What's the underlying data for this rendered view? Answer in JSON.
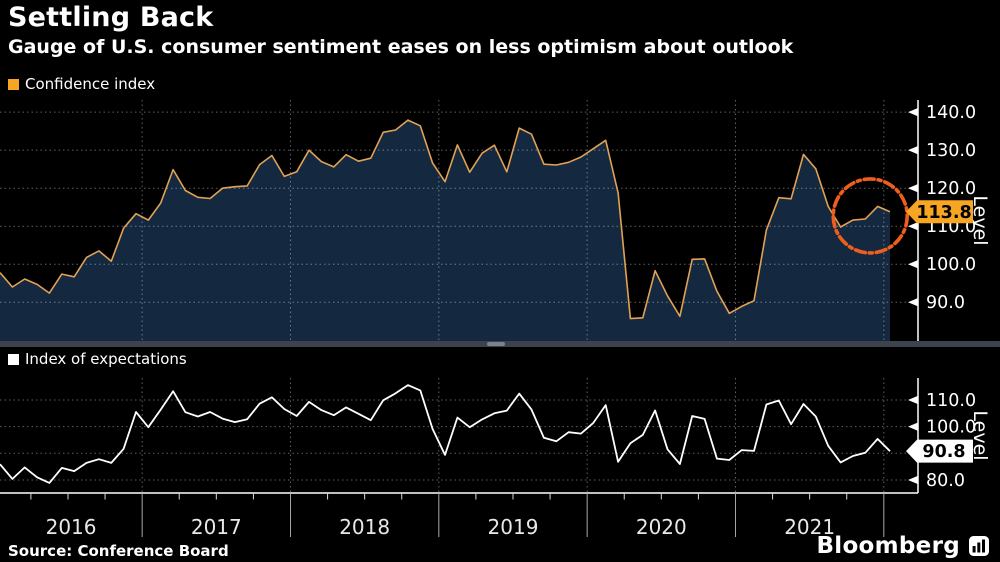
{
  "header": {
    "title": "Settling Back",
    "subtitle": "Gauge of U.S. consumer sentiment eases on less optimism about outlook"
  },
  "source": "Source: Conference Board",
  "branding": {
    "logo": "Bloomberg"
  },
  "colors": {
    "background": "#000000",
    "accent_orange": "#f6a623",
    "line_orange": "#e2a254",
    "area_fill_navy": "#142940",
    "annotation_orange": "#ee5f1d",
    "white": "#ffffff",
    "grid": "rgba(255,255,255,0.38)",
    "scrollbar_track": "#3c434c",
    "scrollbar_thumb": "#7a828b"
  },
  "chart_data": [
    {
      "type": "area",
      "name": "Confidence index",
      "x_monthly_start": "2016-01",
      "x_monthly_end": "2022-01",
      "x_tick_labels": [
        "2016",
        "2017",
        "2018",
        "2019",
        "2020",
        "2021"
      ],
      "ylabel": "Level",
      "y_ticks": [
        90,
        100,
        110,
        120,
        130,
        140
      ],
      "y_tick_labels": [
        "90.0",
        "100.0",
        "110.0",
        "120.0",
        "130.0",
        "140.0"
      ],
      "ylim": [
        79.8,
        143.2
      ],
      "grid": true,
      "legend_position": "top-left",
      "line_color": "#e2a254",
      "fill_color": "#142940",
      "swatch_color": "#f6a623",
      "tag_bg": "#f6a623",
      "tag_text_color": "#000000",
      "last_value_label": "113.8",
      "annotation": {
        "shape": "dashed-circle",
        "purpose": "highlights recent easing of the index",
        "center_month_index": 70.4,
        "center_value": 112.7,
        "radius_px": 37,
        "color": "#ee5f1d"
      },
      "values": [
        97.8,
        94.0,
        96.1,
        94.7,
        92.4,
        97.4,
        96.7,
        101.8,
        103.5,
        100.8,
        109.5,
        113.3,
        111.6,
        116.1,
        124.9,
        119.4,
        117.6,
        117.3,
        120.0,
        120.4,
        120.6,
        126.2,
        128.6,
        123.1,
        124.3,
        130.0,
        127.0,
        125.6,
        128.8,
        127.1,
        127.9,
        134.7,
        135.3,
        137.9,
        136.4,
        126.6,
        121.7,
        131.4,
        124.2,
        129.2,
        131.3,
        124.3,
        135.8,
        134.2,
        126.3,
        126.1,
        126.8,
        128.2,
        130.4,
        132.6,
        118.8,
        85.7,
        85.9,
        98.3,
        91.7,
        86.3,
        101.3,
        101.4,
        92.9,
        87.1,
        88.9,
        90.4,
        109.0,
        117.5,
        117.2,
        128.9,
        125.1,
        115.2,
        109.8,
        111.6,
        111.9,
        115.2,
        113.8
      ]
    },
    {
      "type": "line",
      "name": "Index of expectations",
      "x_monthly_start": "2016-01",
      "x_monthly_end": "2022-01",
      "ylabel": "Level",
      "y_ticks": [
        80,
        90,
        100,
        110
      ],
      "y_tick_labels": [
        "80.0",
        "",
        "100.0",
        "110.0"
      ],
      "ylim": [
        75.1,
        118.25
      ],
      "grid": true,
      "legend_position": "top-left",
      "line_color": "#ffffff",
      "swatch_color": "#ffffff",
      "tag_bg": "#ffffff",
      "tag_text_color": "#000000",
      "last_value_label": "90.8",
      "values": [
        85.9,
        80.4,
        84.7,
        81.0,
        78.9,
        84.5,
        83.3,
        86.4,
        87.8,
        86.4,
        91.7,
        105.5,
        99.8,
        106.4,
        113.3,
        105.4,
        103.8,
        105.5,
        103.0,
        101.7,
        102.8,
        108.6,
        111.0,
        106.6,
        104.0,
        109.3,
        106.2,
        104.3,
        107.2,
        104.8,
        102.4,
        109.9,
        112.5,
        115.6,
        113.6,
        99.1,
        89.4,
        103.4,
        99.8,
        102.7,
        105.0,
        106.0,
        112.4,
        106.4,
        95.8,
        94.5,
        97.9,
        97.4,
        101.4,
        108.1,
        86.8,
        93.8,
        96.9,
        106.1,
        91.5,
        86.0,
        104.0,
        102.9,
        88.0,
        87.5,
        91.2,
        90.9,
        108.3,
        109.8,
        100.9,
        108.5,
        103.8,
        92.8,
        86.6,
        89.0,
        90.2,
        95.4,
        90.8
      ]
    }
  ]
}
